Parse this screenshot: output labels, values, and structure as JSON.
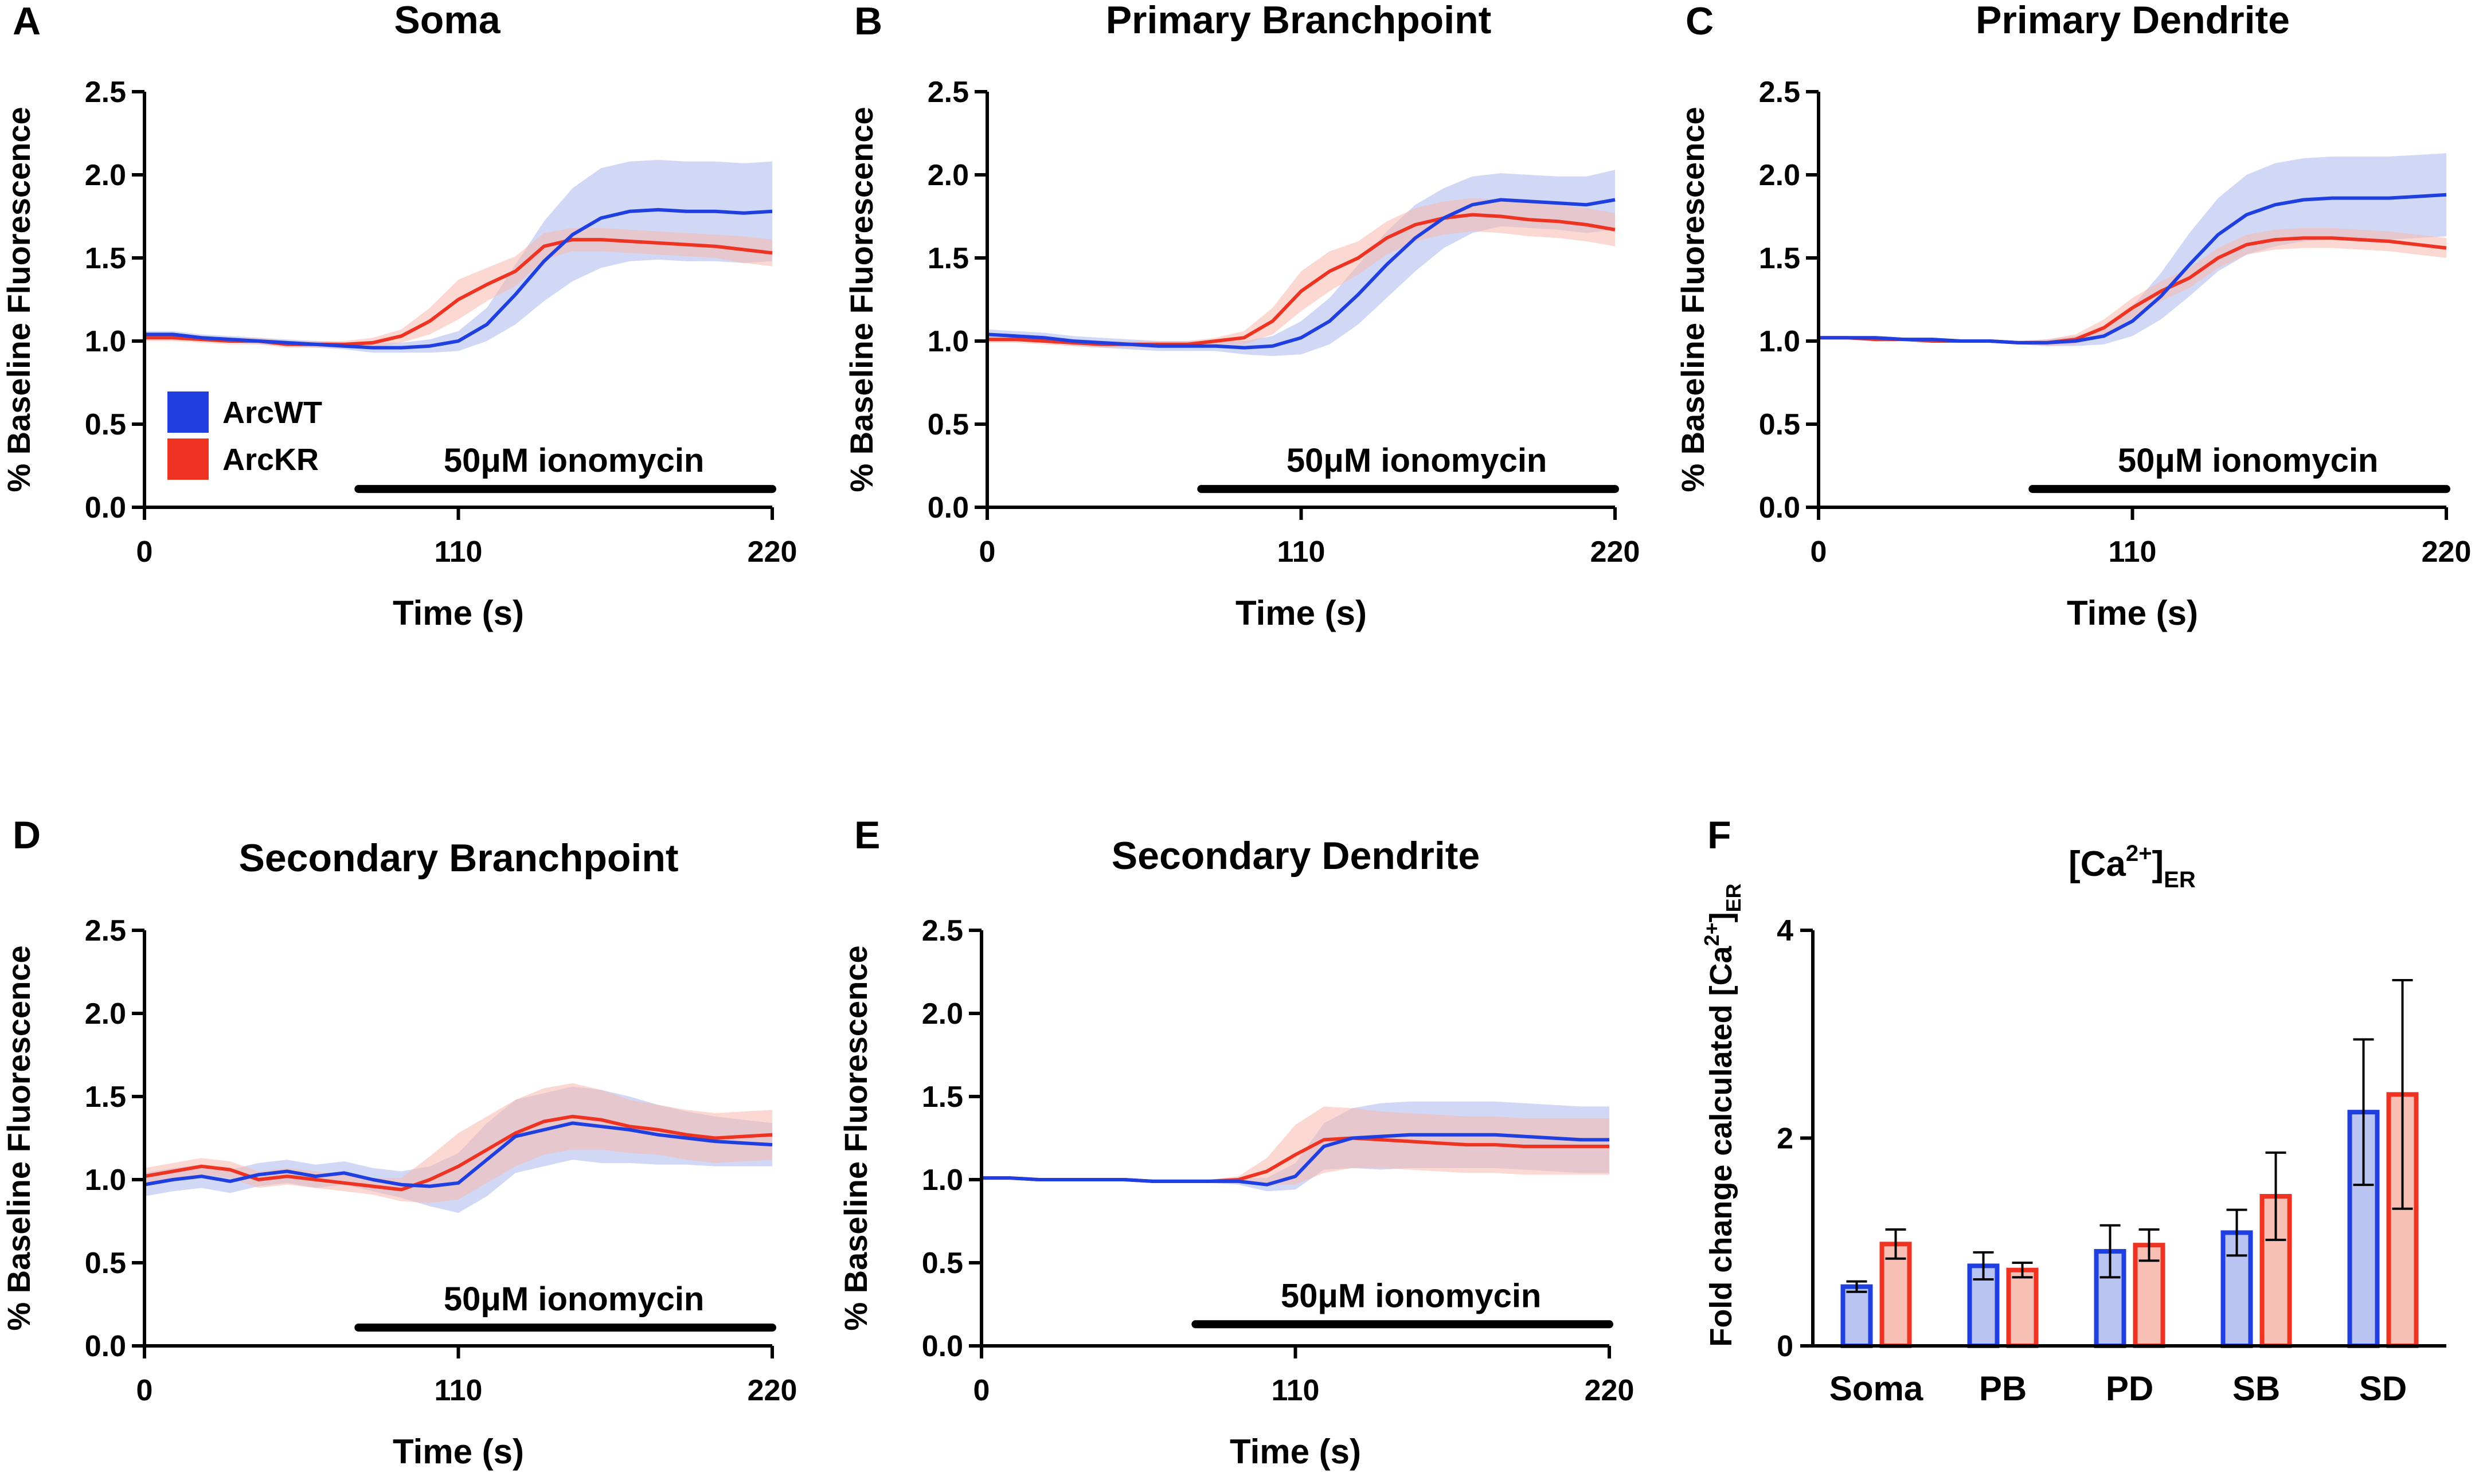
{
  "colors": {
    "arcwt": "#1f3fe0",
    "arckr": "#ee3322",
    "arcwt_band": "#aab8ef",
    "arckr_band": "#f7b9ad",
    "arcwt_fill": "#b9c4f3",
    "arckr_fill": "#f8c0b5"
  },
  "legend": {
    "items": [
      "ArcWT",
      "ArcKR"
    ]
  },
  "chart_data": [
    {
      "panel": "A",
      "type": "line",
      "title": "Soma",
      "xlabel": "Time (s)",
      "ylabel": "% Baseline Fluorescence",
      "xlim": [
        0,
        220
      ],
      "ylim": [
        0,
        2.5
      ],
      "xticks": [
        "0",
        "110",
        "220"
      ],
      "yticks": [
        "0.0",
        "0.5",
        "1.0",
        "1.5",
        "2.0",
        "2.5"
      ],
      "annotation": {
        "text": "50μM ionomycin",
        "x_start": 75,
        "x_end": 220,
        "y": 0.11
      },
      "series": [
        {
          "name": "ArcWT",
          "x": [
            0,
            10,
            20,
            30,
            40,
            50,
            60,
            70,
            80,
            90,
            100,
            110,
            120,
            130,
            140,
            150,
            160,
            170,
            180,
            190,
            200,
            210,
            220
          ],
          "y": [
            1.04,
            1.04,
            1.02,
            1.01,
            1.0,
            0.99,
            0.98,
            0.97,
            0.96,
            0.96,
            0.97,
            1.0,
            1.1,
            1.28,
            1.48,
            1.64,
            1.74,
            1.78,
            1.79,
            1.78,
            1.78,
            1.77,
            1.78
          ],
          "err": [
            0.02,
            0.02,
            0.02,
            0.02,
            0.02,
            0.02,
            0.02,
            0.02,
            0.03,
            0.03,
            0.04,
            0.06,
            0.1,
            0.18,
            0.24,
            0.28,
            0.3,
            0.3,
            0.3,
            0.3,
            0.3,
            0.3,
            0.3
          ]
        },
        {
          "name": "ArcKR",
          "x": [
            0,
            10,
            20,
            30,
            40,
            50,
            60,
            70,
            80,
            90,
            100,
            110,
            120,
            130,
            140,
            150,
            160,
            170,
            180,
            190,
            200,
            210,
            220
          ],
          "y": [
            1.02,
            1.02,
            1.01,
            1.0,
            1.0,
            0.98,
            0.98,
            0.98,
            0.99,
            1.03,
            1.12,
            1.25,
            1.34,
            1.42,
            1.57,
            1.61,
            1.61,
            1.6,
            1.59,
            1.58,
            1.57,
            1.55,
            1.53
          ],
          "err": [
            0.02,
            0.02,
            0.02,
            0.02,
            0.02,
            0.02,
            0.02,
            0.02,
            0.03,
            0.04,
            0.08,
            0.12,
            0.1,
            0.09,
            0.08,
            0.07,
            0.07,
            0.07,
            0.07,
            0.07,
            0.07,
            0.08,
            0.08
          ]
        }
      ]
    },
    {
      "panel": "B",
      "type": "line",
      "title": "Primary Branchpoint",
      "xlabel": "Time (s)",
      "ylabel": "% Baseline Fluorescence",
      "xlim": [
        0,
        220
      ],
      "ylim": [
        0,
        2.5
      ],
      "xticks": [
        "0",
        "110",
        "220"
      ],
      "yticks": [
        "0.0",
        "0.5",
        "1.0",
        "1.5",
        "2.0",
        "2.5"
      ],
      "annotation": {
        "text": "50μM ionomycin",
        "x_start": 75,
        "x_end": 220,
        "y": 0.11
      },
      "series": [
        {
          "name": "ArcWT",
          "x": [
            0,
            10,
            20,
            30,
            40,
            50,
            60,
            70,
            80,
            90,
            100,
            110,
            120,
            130,
            140,
            150,
            160,
            170,
            180,
            190,
            200,
            210,
            220
          ],
          "y": [
            1.04,
            1.03,
            1.02,
            1.0,
            0.99,
            0.98,
            0.97,
            0.97,
            0.97,
            0.96,
            0.97,
            1.02,
            1.12,
            1.28,
            1.46,
            1.62,
            1.74,
            1.82,
            1.85,
            1.84,
            1.83,
            1.82,
            1.85
          ],
          "err": [
            0.03,
            0.03,
            0.03,
            0.03,
            0.03,
            0.03,
            0.03,
            0.03,
            0.03,
            0.04,
            0.06,
            0.1,
            0.14,
            0.18,
            0.2,
            0.2,
            0.18,
            0.17,
            0.16,
            0.16,
            0.16,
            0.17,
            0.18
          ]
        },
        {
          "name": "ArcKR",
          "x": [
            0,
            10,
            20,
            30,
            40,
            50,
            60,
            70,
            80,
            90,
            100,
            110,
            120,
            130,
            140,
            150,
            160,
            170,
            180,
            190,
            200,
            210,
            220
          ],
          "y": [
            1.01,
            1.01,
            1.0,
            0.99,
            0.98,
            0.98,
            0.98,
            0.98,
            1.0,
            1.02,
            1.12,
            1.3,
            1.42,
            1.5,
            1.62,
            1.7,
            1.74,
            1.76,
            1.75,
            1.73,
            1.72,
            1.7,
            1.67
          ],
          "err": [
            0.02,
            0.02,
            0.02,
            0.02,
            0.02,
            0.02,
            0.02,
            0.02,
            0.02,
            0.04,
            0.08,
            0.12,
            0.12,
            0.1,
            0.1,
            0.1,
            0.1,
            0.1,
            0.1,
            0.1,
            0.1,
            0.1,
            0.1
          ]
        }
      ]
    },
    {
      "panel": "C",
      "type": "line",
      "title": "Primary Dendrite",
      "xlabel": "Time (s)",
      "ylabel": "% Baseline Fluorescence",
      "xlim": [
        0,
        220
      ],
      "ylim": [
        0,
        2.5
      ],
      "xticks": [
        "0",
        "110",
        "220"
      ],
      "yticks": [
        "0.0",
        "0.5",
        "1.0",
        "1.5",
        "2.0",
        "2.5"
      ],
      "annotation": {
        "text": "50μM ionomycin",
        "x_start": 75,
        "x_end": 220,
        "y": 0.11
      },
      "series": [
        {
          "name": "ArcWT",
          "x": [
            0,
            10,
            20,
            30,
            40,
            50,
            60,
            70,
            80,
            90,
            100,
            110,
            120,
            130,
            140,
            150,
            160,
            170,
            180,
            190,
            200,
            210,
            220
          ],
          "y": [
            1.02,
            1.02,
            1.02,
            1.01,
            1.01,
            1.0,
            1.0,
            0.99,
            0.99,
            1.0,
            1.03,
            1.12,
            1.27,
            1.46,
            1.64,
            1.76,
            1.82,
            1.85,
            1.86,
            1.86,
            1.86,
            1.87,
            1.88
          ],
          "err": [
            0.01,
            0.01,
            0.01,
            0.01,
            0.01,
            0.01,
            0.01,
            0.01,
            0.02,
            0.03,
            0.05,
            0.09,
            0.14,
            0.19,
            0.22,
            0.24,
            0.25,
            0.25,
            0.25,
            0.25,
            0.25,
            0.25,
            0.25
          ]
        },
        {
          "name": "ArcKR",
          "x": [
            0,
            10,
            20,
            30,
            40,
            50,
            60,
            70,
            80,
            90,
            100,
            110,
            120,
            130,
            140,
            150,
            160,
            170,
            180,
            190,
            200,
            210,
            220
          ],
          "y": [
            1.02,
            1.02,
            1.01,
            1.01,
            1.0,
            1.0,
            1.0,
            0.99,
            0.99,
            1.01,
            1.08,
            1.2,
            1.3,
            1.38,
            1.5,
            1.58,
            1.61,
            1.62,
            1.62,
            1.61,
            1.6,
            1.58,
            1.56
          ],
          "err": [
            0.01,
            0.01,
            0.01,
            0.01,
            0.01,
            0.01,
            0.01,
            0.01,
            0.02,
            0.03,
            0.05,
            0.06,
            0.06,
            0.06,
            0.06,
            0.06,
            0.06,
            0.06,
            0.06,
            0.06,
            0.06,
            0.06,
            0.06
          ]
        }
      ]
    },
    {
      "panel": "D",
      "type": "line",
      "title": "Secondary Branchpoint",
      "xlabel": "Time (s)",
      "ylabel": "% Baseline Fluorescence",
      "xlim": [
        0,
        220
      ],
      "ylim": [
        0,
        2.5
      ],
      "xticks": [
        "0",
        "110",
        "220"
      ],
      "yticks": [
        "0.0",
        "0.5",
        "1.0",
        "1.5",
        "2.0",
        "2.5"
      ],
      "annotation": {
        "text": "50μM ionomycin",
        "x_start": 75,
        "x_end": 220,
        "y": 0.11
      },
      "series": [
        {
          "name": "ArcWT",
          "x": [
            0,
            10,
            20,
            30,
            40,
            50,
            60,
            70,
            80,
            90,
            100,
            110,
            120,
            130,
            140,
            150,
            160,
            170,
            180,
            190,
            200,
            210,
            220
          ],
          "y": [
            0.97,
            1.0,
            1.02,
            0.99,
            1.03,
            1.05,
            1.02,
            1.04,
            1.0,
            0.97,
            0.96,
            0.98,
            1.12,
            1.26,
            1.3,
            1.34,
            1.32,
            1.3,
            1.27,
            1.25,
            1.23,
            1.22,
            1.21
          ],
          "err": [
            0.07,
            0.07,
            0.07,
            0.07,
            0.07,
            0.07,
            0.07,
            0.07,
            0.07,
            0.08,
            0.12,
            0.18,
            0.22,
            0.22,
            0.22,
            0.22,
            0.22,
            0.2,
            0.18,
            0.16,
            0.15,
            0.14,
            0.13
          ]
        },
        {
          "name": "ArcKR",
          "x": [
            0,
            10,
            20,
            30,
            40,
            50,
            60,
            70,
            80,
            90,
            100,
            110,
            120,
            130,
            140,
            150,
            160,
            170,
            180,
            190,
            200,
            210,
            220
          ],
          "y": [
            1.02,
            1.05,
            1.08,
            1.06,
            1.0,
            1.02,
            1.0,
            0.98,
            0.96,
            0.94,
            1.0,
            1.08,
            1.18,
            1.28,
            1.35,
            1.38,
            1.36,
            1.32,
            1.3,
            1.27,
            1.25,
            1.26,
            1.27
          ],
          "err": [
            0.05,
            0.05,
            0.05,
            0.05,
            0.05,
            0.05,
            0.05,
            0.05,
            0.05,
            0.07,
            0.14,
            0.2,
            0.2,
            0.2,
            0.2,
            0.2,
            0.18,
            0.16,
            0.15,
            0.15,
            0.15,
            0.15,
            0.15
          ]
        }
      ]
    },
    {
      "panel": "E",
      "type": "line",
      "title": "Secondary Dendrite",
      "xlabel": "Time (s)",
      "ylabel": "% Baseline Fluorescence",
      "xlim": [
        0,
        220
      ],
      "ylim": [
        0,
        2.5
      ],
      "xticks": [
        "0",
        "110",
        "220"
      ],
      "yticks": [
        "0.0",
        "0.5",
        "1.0",
        "1.5",
        "2.0",
        "2.5"
      ],
      "annotation": {
        "text": "50μM ionomycin",
        "x_start": 75,
        "x_end": 220,
        "y": 0.13
      },
      "series": [
        {
          "name": "ArcWT",
          "x": [
            0,
            10,
            20,
            30,
            40,
            50,
            60,
            70,
            80,
            90,
            100,
            110,
            120,
            130,
            140,
            150,
            160,
            170,
            180,
            190,
            200,
            210,
            220
          ],
          "y": [
            1.01,
            1.01,
            1.0,
            1.0,
            1.0,
            1.0,
            0.99,
            0.99,
            0.99,
            0.99,
            0.97,
            1.02,
            1.2,
            1.25,
            1.26,
            1.27,
            1.27,
            1.27,
            1.27,
            1.26,
            1.25,
            1.24,
            1.24
          ],
          "err": [
            0.01,
            0.01,
            0.01,
            0.01,
            0.01,
            0.01,
            0.01,
            0.01,
            0.01,
            0.02,
            0.04,
            0.08,
            0.14,
            0.18,
            0.2,
            0.2,
            0.2,
            0.2,
            0.2,
            0.2,
            0.2,
            0.2,
            0.2
          ]
        },
        {
          "name": "ArcKR",
          "x": [
            0,
            10,
            20,
            30,
            40,
            50,
            60,
            70,
            80,
            90,
            100,
            110,
            120,
            130,
            140,
            150,
            160,
            170,
            180,
            190,
            200,
            210,
            220
          ],
          "y": [
            1.01,
            1.01,
            1.0,
            1.0,
            1.0,
            1.0,
            0.99,
            0.99,
            0.99,
            1.0,
            1.05,
            1.15,
            1.24,
            1.25,
            1.24,
            1.23,
            1.22,
            1.21,
            1.21,
            1.2,
            1.2,
            1.2,
            1.2
          ],
          "err": [
            0.01,
            0.01,
            0.01,
            0.01,
            0.01,
            0.01,
            0.01,
            0.01,
            0.01,
            0.02,
            0.08,
            0.18,
            0.2,
            0.18,
            0.17,
            0.17,
            0.17,
            0.17,
            0.17,
            0.17,
            0.17,
            0.17,
            0.17
          ]
        }
      ]
    },
    {
      "panel": "F",
      "type": "bar",
      "title": "[Ca2+]ER",
      "ylabel": "Fold change calculated [Ca2+]ER",
      "ylim": [
        0,
        4
      ],
      "yticks": [
        "0",
        "2",
        "4"
      ],
      "categories": [
        "Soma",
        "PB",
        "PD",
        "SB",
        "SD"
      ],
      "series": [
        {
          "name": "ArcWT",
          "values": [
            0.57,
            0.77,
            0.91,
            1.09,
            2.25
          ],
          "err": [
            0.05,
            0.13,
            0.25,
            0.22,
            0.7
          ]
        },
        {
          "name": "ArcKR",
          "values": [
            0.98,
            0.73,
            0.97,
            1.44,
            2.42
          ],
          "err": [
            0.14,
            0.07,
            0.15,
            0.42,
            1.1
          ]
        }
      ]
    }
  ]
}
